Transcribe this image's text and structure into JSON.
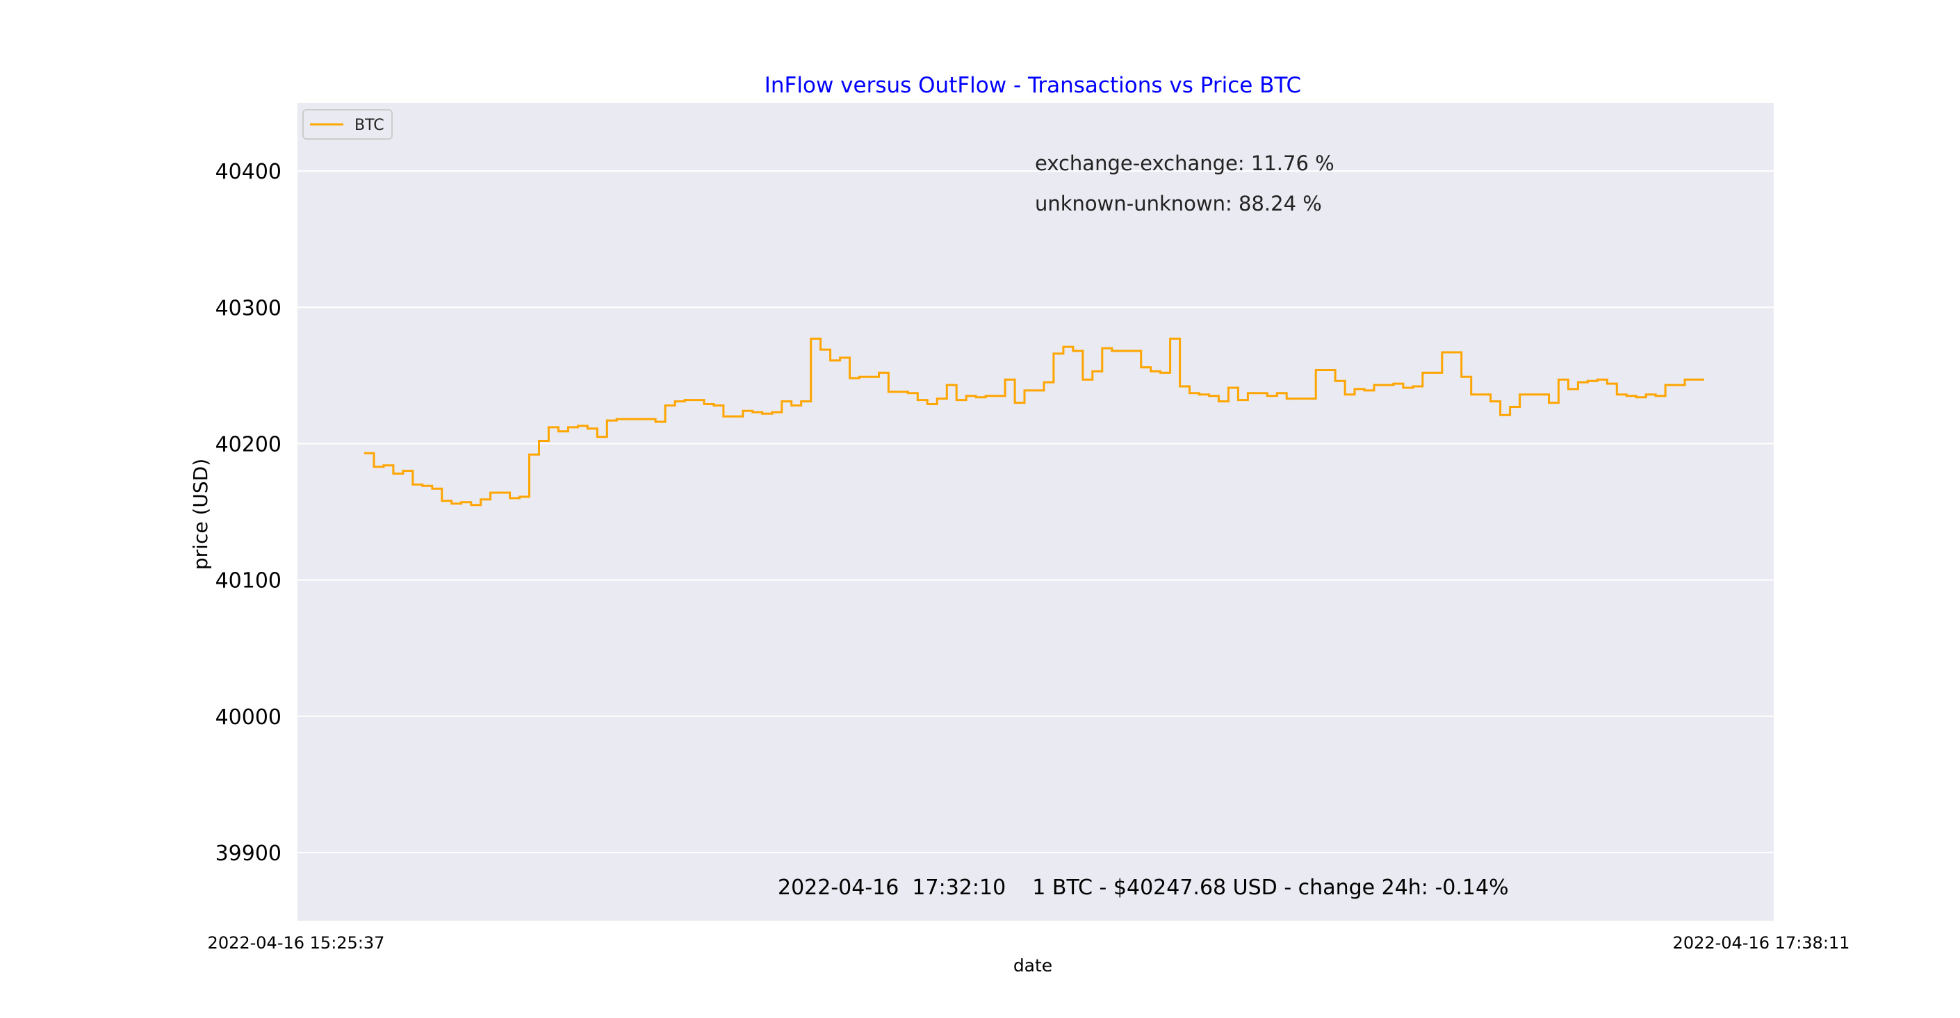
{
  "chart_data": {
    "type": "line",
    "title": "InFlow versus OutFlow - Transactions vs Price BTC",
    "xlabel": "date",
    "ylabel": "price (USD)",
    "ylim": [
      39850,
      40450
    ],
    "y_ticks": [
      "39900",
      "40000",
      "40100",
      "40200",
      "40300",
      "40400"
    ],
    "x_tick_labels": [
      "2022-04-16  15:25:37",
      "2022-04-16  17:38:11"
    ],
    "grid": true,
    "legend": {
      "placement": "top-left",
      "entries": [
        "BTC"
      ]
    },
    "annotations": {
      "exchange": "exchange-exchange: 11.76 %",
      "unknown": "unknown-unknown: 88.24 %",
      "footer": "2022-04-16  17:32:10    1 BTC - $40247.68 USD - change 24h: -0.14%"
    },
    "colors": {
      "line": "#FFA500",
      "title": "#0000FF",
      "plot_bg": "#EAEAF2",
      "grid": "#FFFFFF"
    },
    "series": [
      {
        "name": "BTC",
        "values": [
          40193,
          40183,
          40184,
          40178,
          40180,
          40170,
          40169,
          40167,
          40158,
          40156,
          40157,
          40155,
          40159,
          40164,
          40164,
          40160,
          40161,
          40192,
          40202,
          40212,
          40209,
          40212,
          40213,
          40211,
          40205,
          40217,
          40218,
          40218,
          40218,
          40218,
          40216,
          40228,
          40231,
          40232,
          40232,
          40229,
          40228,
          40220,
          40220,
          40224,
          40223,
          40222,
          40223,
          40231,
          40228,
          40231,
          40277,
          40269,
          40261,
          40263,
          40248,
          40249,
          40249,
          40252,
          40238,
          40238,
          40237,
          40232,
          40229,
          40233,
          40243,
          40232,
          40235,
          40234,
          40235,
          40235,
          40247,
          40230,
          40239,
          40239,
          40245,
          40266,
          40271,
          40268,
          40247,
          40253,
          40270,
          40268,
          40268,
          40268,
          40256,
          40253,
          40252,
          40277,
          40242,
          40237,
          40236,
          40235,
          40231,
          40241,
          40232,
          40237,
          40237,
          40235,
          40237,
          40233,
          40233,
          40233,
          40254,
          40254,
          40246,
          40236,
          40240,
          40239,
          40243,
          40243,
          40244,
          40241,
          40242,
          40252,
          40252,
          40267,
          40267,
          40249,
          40236,
          40236,
          40231,
          40221,
          40227,
          40236,
          40236,
          40236,
          40230,
          40247,
          40240,
          40245,
          40246,
          40247,
          40244,
          40236,
          40235,
          40234,
          40236,
          40235,
          40243,
          40243,
          40247,
          40247
        ]
      }
    ]
  }
}
